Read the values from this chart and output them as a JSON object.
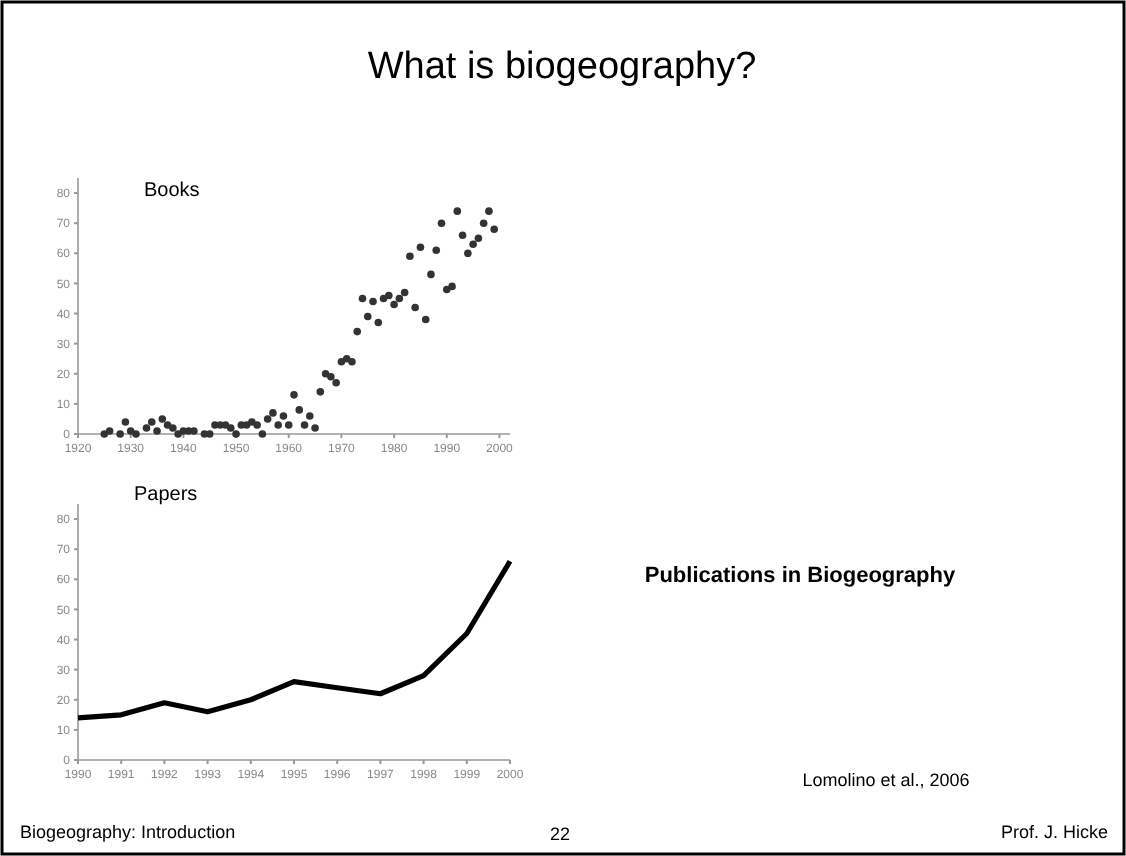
{
  "chart_data": [
    {
      "type": "scatter",
      "title": "Books",
      "x": [
        1925,
        1926,
        1928,
        1929,
        1930,
        1931,
        1933,
        1934,
        1935,
        1936,
        1937,
        1938,
        1939,
        1940,
        1941,
        1942,
        1944,
        1945,
        1946,
        1947,
        1948,
        1949,
        1950,
        1951,
        1952,
        1953,
        1954,
        1955,
        1956,
        1957,
        1958,
        1959,
        1960,
        1961,
        1962,
        1963,
        1964,
        1965,
        1966,
        1967,
        1968,
        1969,
        1970,
        1971,
        1972,
        1973,
        1974,
        1975,
        1976,
        1977,
        1978,
        1979,
        1980,
        1981,
        1982,
        1983,
        1984,
        1985,
        1986,
        1987,
        1988,
        1989,
        1990,
        1991,
        1992,
        1993,
        1994,
        1995,
        1996,
        1997,
        1998,
        1999
      ],
      "series": [
        {
          "color": "#333333",
          "values": [
            0,
            1,
            0,
            4,
            1,
            0,
            2,
            4,
            1,
            5,
            3,
            2,
            0,
            1,
            1,
            1,
            0,
            0,
            3,
            3,
            3,
            2,
            0,
            3,
            3,
            4,
            3,
            0,
            5,
            7,
            3,
            6,
            3,
            13,
            8,
            3,
            6,
            2,
            14,
            20,
            19,
            17,
            24,
            25,
            24,
            34,
            45,
            39,
            44,
            37,
            45,
            46,
            43,
            45,
            47,
            59,
            42,
            62,
            38,
            53,
            61,
            70,
            48,
            49,
            74,
            66,
            60,
            63,
            65,
            70,
            74,
            68
          ]
        }
      ],
      "xlim": [
        1920,
        2002
      ],
      "xticks": [
        1920,
        1930,
        1940,
        1950,
        1960,
        1970,
        1980,
        1990,
        2000
      ],
      "ylim": [
        0,
        85
      ],
      "yticks": [
        0,
        10,
        20,
        30,
        40,
        50,
        60,
        70,
        80
      ],
      "marker": "circle"
    },
    {
      "type": "line",
      "title": "Papers",
      "x": [
        1990,
        1991,
        1992,
        1993,
        1994,
        1995,
        1996,
        1997,
        1998,
        1999,
        2000
      ],
      "series": [
        {
          "color": "#000000",
          "values": [
            14,
            15,
            19,
            16,
            20,
            26,
            24,
            22,
            28,
            42,
            66
          ]
        }
      ],
      "xlim": [
        1990,
        2000
      ],
      "xticks": [
        1990,
        1991,
        1992,
        1993,
        1994,
        1995,
        1996,
        1997,
        1998,
        1999,
        2000
      ],
      "ylim": [
        0,
        85
      ],
      "yticks": [
        0,
        10,
        20,
        30,
        40,
        50,
        60,
        70,
        80
      ],
      "marker": "none",
      "line_style": "solid"
    },
    {
      "type": "other",
      "title": "What is biogeography?",
      "annotations": [
        "Publications in Biogeography",
        "Lomolino et al., 2006",
        "Biogeography: Introduction",
        "22",
        "Prof. J. Hicke"
      ]
    }
  ]
}
